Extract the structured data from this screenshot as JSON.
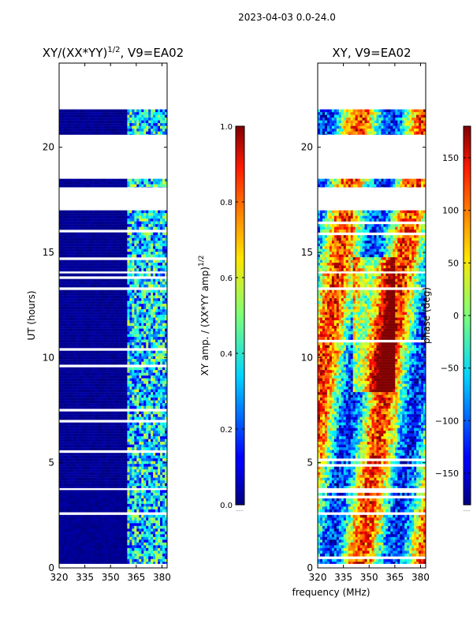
{
  "suptitle": "2023-04-03 0.0-24.0",
  "xlabel_shared": "frequency (MHz)",
  "chart_data": [
    {
      "type": "heatmap",
      "title": "XY/(XX*YY)",
      "title_exp": "1/2",
      "title_suffix": ", V9=EA02",
      "xlabel": "frequency (MHz)",
      "ylabel": "UT (hours)",
      "xlim": [
        320,
        383
      ],
      "ylim": [
        0,
        24
      ],
      "xticks": [
        320,
        335,
        350,
        365,
        380
      ],
      "yticks": [
        0,
        5,
        10,
        15,
        20
      ],
      "colorbar": {
        "label": "XY amp. / (XX*YY amp)",
        "label_exp": "1/2",
        "range": [
          0.0,
          1.0
        ],
        "ticks": [
          "0.0",
          "0.2",
          "0.4",
          "0.6",
          "0.8",
          "1.0"
        ],
        "colormap": "jet"
      },
      "data_blocks_ut": [
        [
          0.2,
          3.7
        ],
        [
          3.8,
          14.0
        ],
        [
          14.1,
          17.0
        ],
        [
          18.1,
          18.5
        ],
        [
          20.6,
          21.8
        ]
      ],
      "signal_band_mhz": [
        360,
        383
      ],
      "background_value": 0.0,
      "signal_value_range": [
        0.2,
        0.6
      ]
    },
    {
      "type": "heatmap",
      "title": "XY, V9=EA02",
      "xlabel": "frequency (MHz)",
      "ylabel": "",
      "xlim": [
        320,
        383
      ],
      "ylim": [
        0,
        24
      ],
      "xticks": [
        320,
        335,
        350,
        365,
        380
      ],
      "yticks": [
        0,
        5,
        10,
        15,
        20
      ],
      "colorbar": {
        "label": "phase (deg)",
        "range": [
          -180,
          180
        ],
        "ticks": [
          "-150",
          "-100",
          "-50",
          "0",
          "50",
          "100",
          "150"
        ],
        "colormap": "jet"
      },
      "data_blocks_ut": [
        [
          0.2,
          3.7
        ],
        [
          3.8,
          14.0
        ],
        [
          14.1,
          17.0
        ],
        [
          18.1,
          18.5
        ],
        [
          20.6,
          21.8
        ]
      ]
    }
  ]
}
